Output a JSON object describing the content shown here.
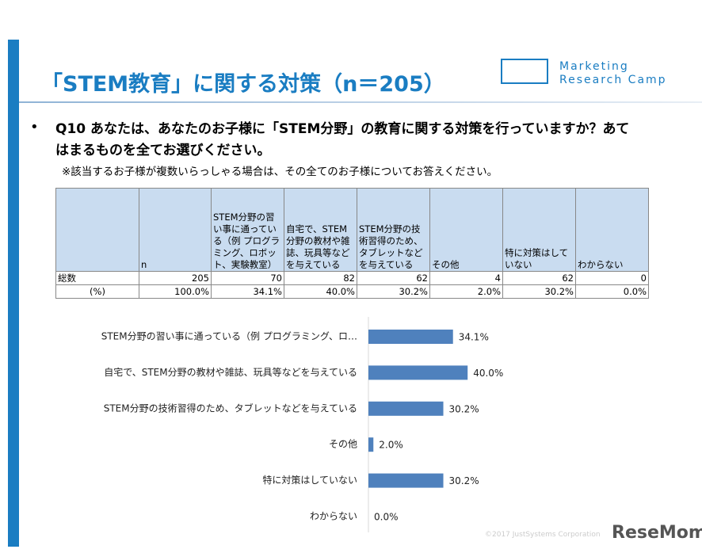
{
  "header": {
    "title": "「STEM教育」に関する対策（n＝205）",
    "logo": [
      "Marketing",
      "Research Camp"
    ]
  },
  "question": {
    "text": "Q10 あなたは、あなたのお子様に「STEM分野」の教育に関する対策を行っていますか？あてはまるものを全てお選びください。",
    "note": "※該当するお子様が複数いらっしゃる場合は、その全てのお子様についてお答えください。"
  },
  "table": {
    "header": [
      "n",
      "STEM分野の習い事に通っている（例 プログラミング、ロボット、実験教室）",
      "自宅で、STEM分野の教材や雑誌、玩具等などを与えている",
      "STEM分野の技術習得のため、タブレットなどを与えている",
      "その他",
      "特に対策はしていない",
      "わからない"
    ],
    "rows": [
      {
        "label": "総数",
        "cells": [
          205,
          70,
          82,
          62,
          4,
          62,
          0
        ]
      },
      {
        "label": "(%)",
        "cells": [
          "100.0%",
          "34.1%",
          "40.0%",
          "30.2%",
          "2.0%",
          "30.2%",
          "0.0%"
        ]
      }
    ]
  },
  "chart_data": {
    "type": "bar",
    "orientation": "horizontal",
    "color": "#4f81bd",
    "categories": [
      "STEM分野の習い事に通っている（例 プログラミング、ロ…",
      "自宅で、STEM分野の教材や雑誌、玩具等などを与えている",
      "STEM分野の技術習得のため、タブレットなどを与えている",
      "その他",
      "特に対策はしていない",
      "わからない"
    ],
    "values": [
      34.1,
      40.0,
      30.2,
      2.0,
      30.2,
      0.0
    ],
    "value_labels": [
      "34.1%",
      "40.0%",
      "30.2%",
      "2.0%",
      "30.2%",
      "0.0%"
    ]
  },
  "footer": {
    "copyright": "©2017 JustSystems Corporation",
    "watermark": "ReseMom"
  }
}
